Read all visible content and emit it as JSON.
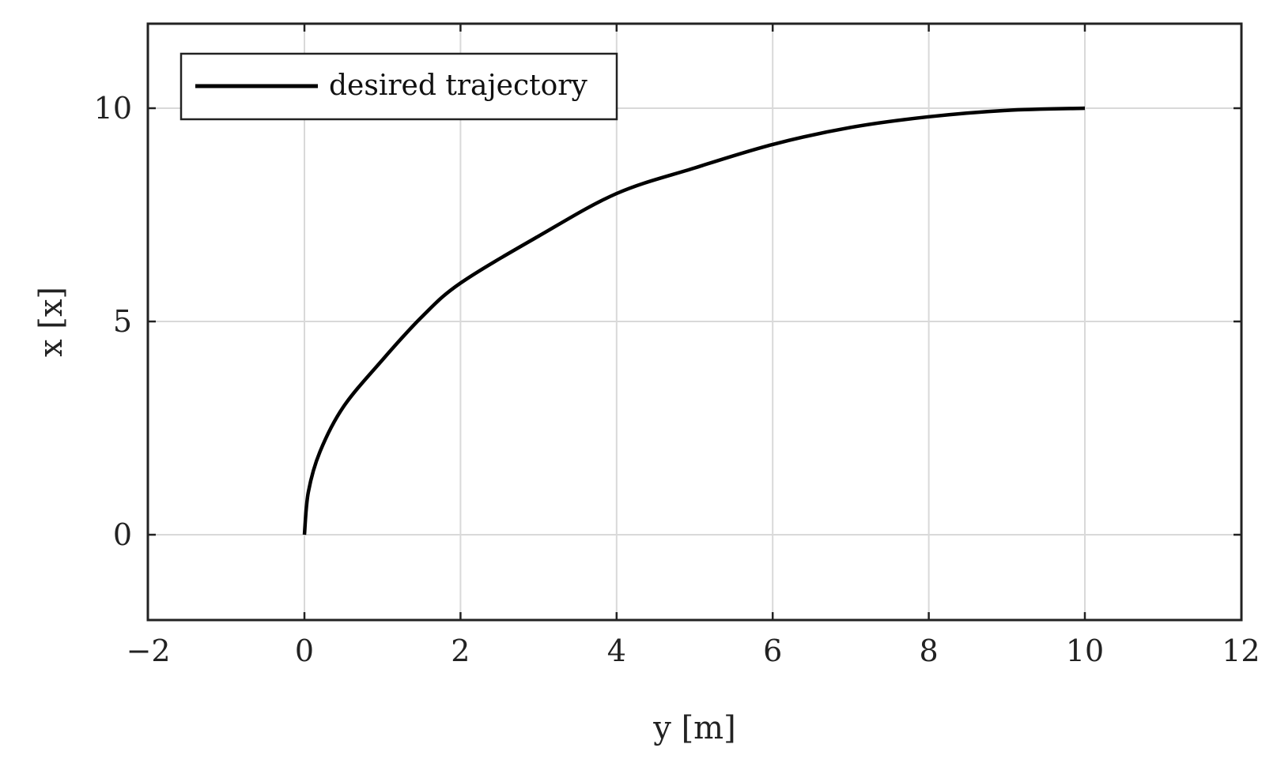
{
  "chart_data": {
    "type": "line",
    "title": "",
    "xlabel": "y [m]",
    "ylabel": "x [x]",
    "xlim": [
      -2,
      12
    ],
    "ylim": [
      -2,
      12
    ],
    "xticks": [
      -2,
      0,
      2,
      4,
      6,
      8,
      10,
      12
    ],
    "xtick_labels": [
      "−2",
      "0",
      "2",
      "4",
      "6",
      "8",
      "10",
      "12"
    ],
    "yticks": [
      0,
      5,
      10
    ],
    "ytick_labels": [
      "0",
      "5",
      "10"
    ],
    "grid": true,
    "legend_position": "top-left",
    "series": [
      {
        "name": "desired trajectory",
        "color": "#000000",
        "x": [
          0,
          0.05,
          0.2,
          0.5,
          1,
          1.5,
          2,
          3,
          4,
          5,
          6,
          7,
          8,
          9,
          10
        ],
        "y": [
          0,
          1.0,
          1.95,
          3.0,
          4.1,
          5.1,
          5.9,
          7.0,
          8.0,
          8.6,
          9.15,
          9.55,
          9.8,
          9.95,
          10.0
        ]
      }
    ]
  }
}
